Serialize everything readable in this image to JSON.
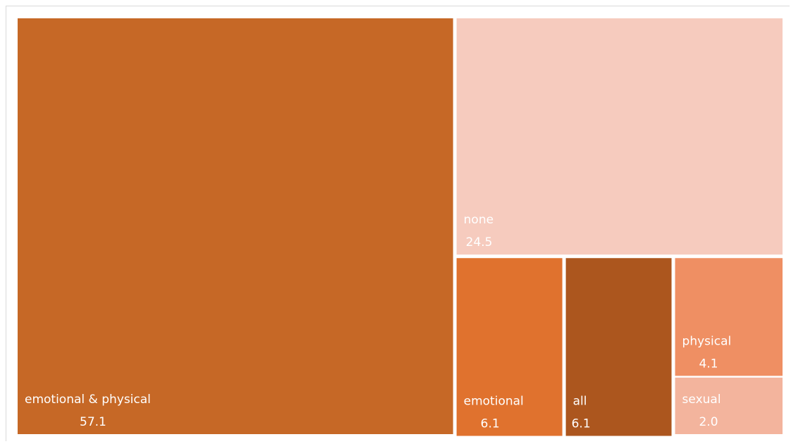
{
  "chart_data": {
    "type": "treemap",
    "items": [
      {
        "name": "emotional & physical",
        "value": 57.1,
        "color": "#C66826"
      },
      {
        "name": "none",
        "value": 24.5,
        "color": "#F6CBBE"
      },
      {
        "name": "emotional",
        "value": 6.1,
        "color": "#E0722E"
      },
      {
        "name": "all",
        "value": 6.1,
        "color": "#AC561E"
      },
      {
        "name": "physical",
        "value": 4.1,
        "color": "#EF8F63"
      },
      {
        "name": "sexual",
        "value": 2.0,
        "color": "#F3B49D"
      }
    ]
  }
}
